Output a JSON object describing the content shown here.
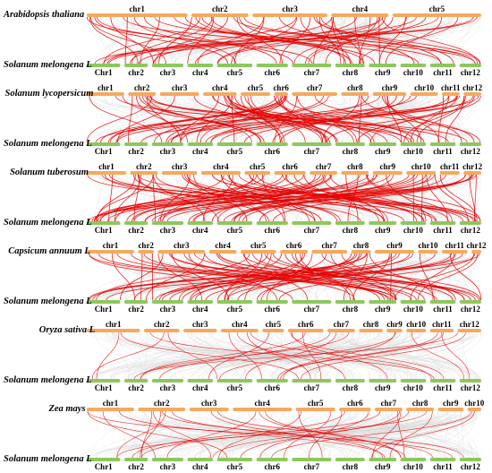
{
  "colors": {
    "reference_bar": "#8cc85c",
    "query_bar": "#f6a95c",
    "background_links": "#d6d6d6",
    "highlight_links": "#e60000"
  },
  "panels": [
    {
      "query_species": "Arabidopsis thaliana",
      "reference_species": "Solanum melongena L",
      "query_chromosomes": [
        "chr1",
        "chr2",
        "chr3",
        "chr4",
        "chr5"
      ],
      "reference_chromosomes": [
        "Chr1",
        "chr2",
        "chr3",
        "chr4",
        "chr5",
        "chr6",
        "chr7",
        "chr8",
        "chr9",
        "chr10",
        "chr11",
        "chr12"
      ]
    },
    {
      "query_species": "Solanum lycopersicum",
      "reference_species": "Solanum melongena L",
      "query_chromosomes": [
        "chr1",
        "chr2",
        "chr3",
        "chr4",
        "chr5",
        "chr6",
        "chr7",
        "chr8",
        "chr9",
        "chr10",
        "chr11",
        "chr12"
      ],
      "reference_chromosomes": [
        "Chr1",
        "chr2",
        "chr3",
        "chr4",
        "chr5",
        "chr6",
        "chr7",
        "chr8",
        "chr9",
        "chr10",
        "chr11",
        "chr12"
      ]
    },
    {
      "query_species": "Solanum tuberosum",
      "reference_species": "Solanum melongena L",
      "query_chromosomes": [
        "chr1",
        "chr2",
        "chr3",
        "chr4",
        "chr5",
        "chr6",
        "chr7",
        "chr8",
        "chr9",
        "chr10",
        "chr11",
        "chr12"
      ],
      "reference_chromosomes": [
        "Chr1",
        "chr2",
        "chr3",
        "chr4",
        "chr5",
        "chr6",
        "chr7",
        "chr8",
        "chr9",
        "chr10",
        "chr11",
        "chr12"
      ]
    },
    {
      "query_species": "Capsicum annuum L",
      "reference_species": "Solanum melongena L",
      "query_chromosomes": [
        "chr1",
        "chr2",
        "chr3",
        "chr4",
        "chr5",
        "chr6",
        "chr7",
        "chr8",
        "chr9",
        "chr10",
        "chr11",
        "chr12"
      ],
      "reference_chromosomes": [
        "Chr1",
        "chr2",
        "chr3",
        "chr4",
        "chr5",
        "chr6",
        "chr7",
        "chr8",
        "chr9",
        "chr10",
        "chr11",
        "chr12"
      ]
    },
    {
      "query_species": "Oryza sativa L",
      "reference_species": "Solanum melongena L",
      "query_chromosomes": [
        "chr1",
        "chr2",
        "chr3",
        "chr4",
        "chr5",
        "chr6",
        "chr7",
        "chr8",
        "chr9",
        "chr10",
        "chr11",
        "chr12"
      ],
      "reference_chromosomes": [
        "Chr1",
        "chr2",
        "chr3",
        "chr4",
        "chr5",
        "chr6",
        "chr7",
        "chr8",
        "chr9",
        "chr10",
        "chr11",
        "chr12"
      ]
    },
    {
      "query_species": "Zea mays",
      "reference_species": "Solanum melongena L",
      "query_chromosomes": [
        "chr1",
        "chr2",
        "chr3",
        "chr4",
        "chr5",
        "chr6",
        "chr7",
        "chr8",
        "chr9",
        "chr10"
      ],
      "reference_chromosomes": [
        "Chr1",
        "chr2",
        "chr3",
        "chr4",
        "chr5",
        "chr6",
        "chr7",
        "chr8",
        "chr9",
        "chr10",
        "chr11",
        "chr12"
      ]
    }
  ]
}
